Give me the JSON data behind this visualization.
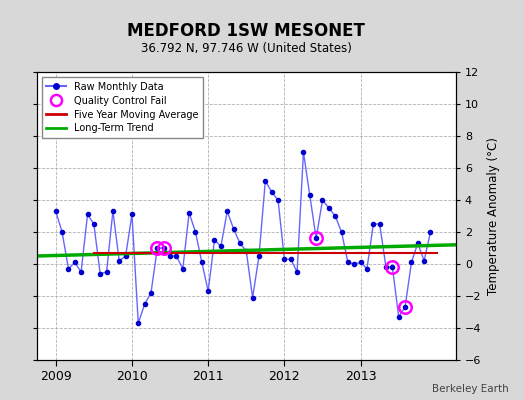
{
  "title": "MEDFORD 1SW MESONET",
  "subtitle": "36.792 N, 97.746 W (United States)",
  "ylabel_right": "Temperature Anomaly (°C)",
  "watermark": "Berkeley Earth",
  "xlim": [
    2008.75,
    2014.25
  ],
  "ylim": [
    -6,
    12
  ],
  "yticks": [
    -6,
    -4,
    -2,
    0,
    2,
    4,
    6,
    8,
    10,
    12
  ],
  "xticks": [
    2009,
    2010,
    2011,
    2012,
    2013
  ],
  "bg_color": "#d8d8d8",
  "plot_bg_color": "#ffffff",
  "raw_color": "#0000cc",
  "raw_line_color": "#6666ff",
  "qc_color": "#ff00ff",
  "moving_avg_color": "#cc0000",
  "trend_color": "#00aa00",
  "raw_data": [
    [
      2009.0,
      3.3
    ],
    [
      2009.083,
      2.0
    ],
    [
      2009.167,
      -0.3
    ],
    [
      2009.25,
      0.1
    ],
    [
      2009.333,
      -0.5
    ],
    [
      2009.417,
      3.1
    ],
    [
      2009.5,
      2.5
    ],
    [
      2009.583,
      -0.6
    ],
    [
      2009.667,
      -0.5
    ],
    [
      2009.75,
      3.3
    ],
    [
      2009.833,
      0.2
    ],
    [
      2009.917,
      0.5
    ],
    [
      2010.0,
      3.1
    ],
    [
      2010.083,
      -3.7
    ],
    [
      2010.167,
      -2.5
    ],
    [
      2010.25,
      -1.8
    ],
    [
      2010.333,
      1.0
    ],
    [
      2010.417,
      1.0
    ],
    [
      2010.5,
      0.5
    ],
    [
      2010.583,
      0.5
    ],
    [
      2010.667,
      -0.3
    ],
    [
      2010.75,
      3.2
    ],
    [
      2010.833,
      2.0
    ],
    [
      2010.917,
      0.1
    ],
    [
      2011.0,
      -1.7
    ],
    [
      2011.083,
      1.5
    ],
    [
      2011.167,
      1.1
    ],
    [
      2011.25,
      3.3
    ],
    [
      2011.333,
      2.2
    ],
    [
      2011.417,
      1.3
    ],
    [
      2011.5,
      0.8
    ],
    [
      2011.583,
      -2.1
    ],
    [
      2011.667,
      0.5
    ],
    [
      2011.75,
      5.2
    ],
    [
      2011.833,
      4.5
    ],
    [
      2011.917,
      4.0
    ],
    [
      2012.0,
      0.3
    ],
    [
      2012.083,
      0.3
    ],
    [
      2012.167,
      -0.5
    ],
    [
      2012.25,
      7.0
    ],
    [
      2012.333,
      4.3
    ],
    [
      2012.417,
      1.6
    ],
    [
      2012.5,
      4.0
    ],
    [
      2012.583,
      3.5
    ],
    [
      2012.667,
      3.0
    ],
    [
      2012.75,
      2.0
    ],
    [
      2012.833,
      0.1
    ],
    [
      2012.917,
      0.0
    ],
    [
      2013.0,
      0.1
    ],
    [
      2013.083,
      -0.3
    ],
    [
      2013.167,
      2.5
    ],
    [
      2013.25,
      2.5
    ],
    [
      2013.333,
      -0.2
    ],
    [
      2013.417,
      -0.2
    ],
    [
      2013.5,
      -3.3
    ],
    [
      2013.583,
      -2.7
    ],
    [
      2013.667,
      0.1
    ],
    [
      2013.75,
      1.3
    ],
    [
      2013.833,
      0.2
    ],
    [
      2013.917,
      2.0
    ]
  ],
  "qc_fail_points": [
    [
      2010.333,
      1.0
    ],
    [
      2010.417,
      1.0
    ],
    [
      2012.417,
      1.6
    ],
    [
      2013.417,
      -0.2
    ],
    [
      2013.583,
      -2.7
    ]
  ],
  "trend_x": [
    2008.75,
    2014.25
  ],
  "trend_y": [
    0.5,
    1.2
  ]
}
